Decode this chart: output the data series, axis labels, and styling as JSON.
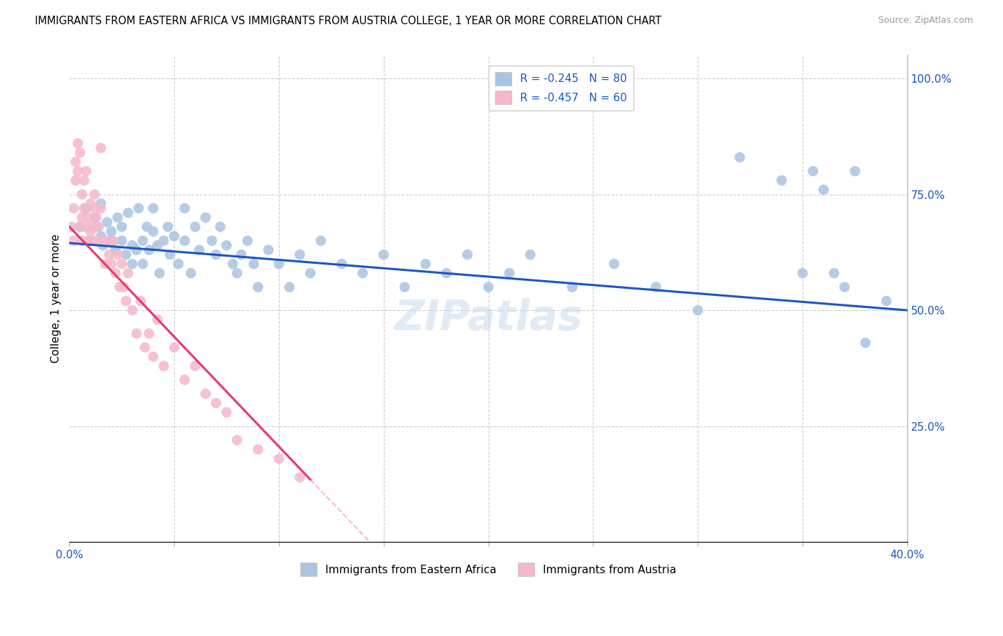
{
  "title": "IMMIGRANTS FROM EASTERN AFRICA VS IMMIGRANTS FROM AUSTRIA COLLEGE, 1 YEAR OR MORE CORRELATION CHART",
  "source": "Source: ZipAtlas.com",
  "ylabel": "College, 1 year or more",
  "xlim": [
    0.0,
    0.4
  ],
  "ylim": [
    0.0,
    1.05
  ],
  "blue_color": "#aac4e2",
  "pink_color": "#f5b8cb",
  "blue_line_color": "#1a56c4",
  "pink_line_color": "#e8376a",
  "legend_label_blue": "R = -0.245   N = 80",
  "legend_label_pink": "R = -0.457   N = 60",
  "watermark": "ZIPatlas",
  "blue_line_x0": 0.0,
  "blue_line_y0": 0.645,
  "blue_line_x1": 0.4,
  "blue_line_y1": 0.5,
  "pink_line_x0": 0.0,
  "pink_line_y0": 0.68,
  "pink_line_x1": 0.115,
  "pink_line_y1": 0.135,
  "blue_scatter_x": [
    0.005,
    0.008,
    0.01,
    0.012,
    0.013,
    0.015,
    0.015,
    0.016,
    0.018,
    0.02,
    0.02,
    0.022,
    0.023,
    0.025,
    0.025,
    0.027,
    0.028,
    0.03,
    0.03,
    0.032,
    0.033,
    0.035,
    0.035,
    0.037,
    0.038,
    0.04,
    0.04,
    0.042,
    0.043,
    0.045,
    0.047,
    0.048,
    0.05,
    0.052,
    0.055,
    0.055,
    0.058,
    0.06,
    0.062,
    0.065,
    0.068,
    0.07,
    0.072,
    0.075,
    0.078,
    0.08,
    0.082,
    0.085,
    0.088,
    0.09,
    0.095,
    0.1,
    0.105,
    0.11,
    0.115,
    0.12,
    0.13,
    0.14,
    0.15,
    0.16,
    0.17,
    0.18,
    0.19,
    0.2,
    0.21,
    0.22,
    0.24,
    0.26,
    0.28,
    0.3,
    0.32,
    0.34,
    0.35,
    0.355,
    0.36,
    0.365,
    0.37,
    0.375,
    0.38,
    0.39
  ],
  "blue_scatter_y": [
    0.68,
    0.72,
    0.65,
    0.7,
    0.68,
    0.73,
    0.66,
    0.64,
    0.69,
    0.65,
    0.67,
    0.63,
    0.7,
    0.65,
    0.68,
    0.62,
    0.71,
    0.64,
    0.6,
    0.63,
    0.72,
    0.65,
    0.6,
    0.68,
    0.63,
    0.67,
    0.72,
    0.64,
    0.58,
    0.65,
    0.68,
    0.62,
    0.66,
    0.6,
    0.72,
    0.65,
    0.58,
    0.68,
    0.63,
    0.7,
    0.65,
    0.62,
    0.68,
    0.64,
    0.6,
    0.58,
    0.62,
    0.65,
    0.6,
    0.55,
    0.63,
    0.6,
    0.55,
    0.62,
    0.58,
    0.65,
    0.6,
    0.58,
    0.62,
    0.55,
    0.6,
    0.58,
    0.62,
    0.55,
    0.58,
    0.62,
    0.55,
    0.6,
    0.55,
    0.5,
    0.83,
    0.78,
    0.58,
    0.8,
    0.76,
    0.58,
    0.55,
    0.8,
    0.43,
    0.52
  ],
  "pink_scatter_x": [
    0.001,
    0.002,
    0.002,
    0.003,
    0.003,
    0.004,
    0.004,
    0.005,
    0.005,
    0.006,
    0.006,
    0.006,
    0.007,
    0.007,
    0.008,
    0.008,
    0.009,
    0.009,
    0.01,
    0.01,
    0.011,
    0.011,
    0.012,
    0.012,
    0.013,
    0.013,
    0.014,
    0.015,
    0.015,
    0.016,
    0.017,
    0.018,
    0.019,
    0.02,
    0.021,
    0.022,
    0.023,
    0.024,
    0.025,
    0.026,
    0.027,
    0.028,
    0.03,
    0.032,
    0.034,
    0.036,
    0.038,
    0.04,
    0.042,
    0.045,
    0.05,
    0.055,
    0.06,
    0.065,
    0.07,
    0.075,
    0.08,
    0.09,
    0.1,
    0.11
  ],
  "pink_scatter_y": [
    0.68,
    0.72,
    0.65,
    0.78,
    0.82,
    0.8,
    0.86,
    0.84,
    0.68,
    0.75,
    0.7,
    0.65,
    0.72,
    0.78,
    0.68,
    0.8,
    0.65,
    0.7,
    0.67,
    0.73,
    0.65,
    0.68,
    0.72,
    0.75,
    0.7,
    0.65,
    0.68,
    0.72,
    0.85,
    0.65,
    0.6,
    0.65,
    0.62,
    0.6,
    0.65,
    0.58,
    0.62,
    0.55,
    0.6,
    0.55,
    0.52,
    0.58,
    0.5,
    0.45,
    0.52,
    0.42,
    0.45,
    0.4,
    0.48,
    0.38,
    0.42,
    0.35,
    0.38,
    0.32,
    0.3,
    0.28,
    0.22,
    0.2,
    0.18,
    0.14
  ]
}
